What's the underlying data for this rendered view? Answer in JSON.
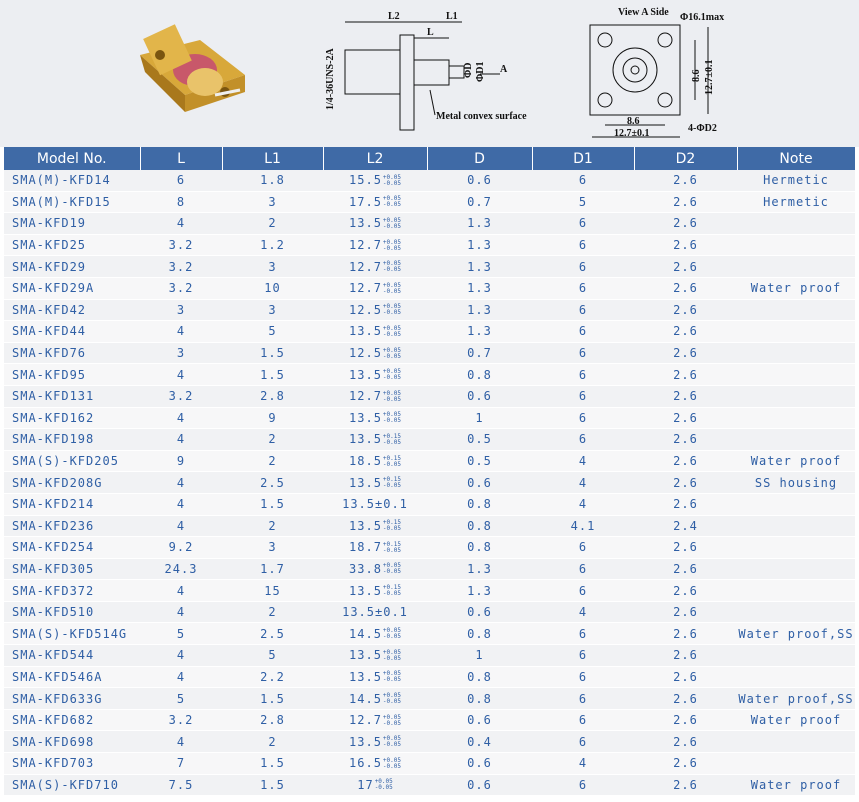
{
  "diagram": {
    "side": {
      "L2": "L2",
      "L1": "L1",
      "L": "L",
      "thread": "1/4-36UNS-2A",
      "phiD": "ΦD",
      "phiD1": "ΦD1",
      "A": "A",
      "surface": "Metal convex surface"
    },
    "front": {
      "view": "View A Side",
      "max": "Φ16.1max",
      "dims": [
        "8.6",
        "12.7±0.1",
        "8.6",
        "12.7±0.1"
      ],
      "holes": "4-ΦD2"
    }
  },
  "table": {
    "headers": [
      "Model No.",
      "L",
      "L1",
      "L2",
      "D",
      "D1",
      "D2",
      "Note"
    ],
    "rows": [
      [
        "SMA(M)-KFD14",
        "6",
        "1.8",
        {
          "base": "15.5",
          "upper": "+0.05",
          "lower": "-0.05"
        },
        "0.6",
        "6",
        "2.6",
        "Hermetic"
      ],
      [
        "SMA(M)-KFD15",
        "8",
        "3",
        {
          "base": "17.5",
          "upper": "+0.05",
          "lower": "-0.05"
        },
        "0.7",
        "5",
        "2.6",
        "Hermetic"
      ],
      [
        "SMA-KFD19",
        "4",
        "2",
        {
          "base": "13.5",
          "upper": "+0.05",
          "lower": "-0.05"
        },
        "1.3",
        "6",
        "2.6"
      ],
      [
        "SMA-KFD25",
        "3.2",
        "1.2",
        {
          "base": "12.7",
          "upper": "+0.05",
          "lower": "-0.05"
        },
        "1.3",
        "6",
        "2.6"
      ],
      [
        "SMA-KFD29",
        "3.2",
        "3",
        {
          "base": "12.7",
          "upper": "+0.05",
          "lower": "-0.05"
        },
        "1.3",
        "6",
        "2.6"
      ],
      [
        "SMA-KFD29A",
        "3.2",
        "10",
        {
          "base": "12.7",
          "upper": "+0.05",
          "lower": "-0.05"
        },
        "1.3",
        "6",
        "2.6",
        "Water proof"
      ],
      [
        "SMA-KFD42",
        "3",
        "3",
        {
          "base": "12.5",
          "upper": "+0.05",
          "lower": "-0.05"
        },
        "1.3",
        "6",
        "2.6"
      ],
      [
        "SMA-KFD44",
        "4",
        "5",
        {
          "base": "13.5",
          "upper": "+0.05",
          "lower": "-0.05"
        },
        "1.3",
        "6",
        "2.6"
      ],
      [
        "SMA-KFD76",
        "3",
        "1.5",
        {
          "base": "12.5",
          "upper": "+0.05",
          "lower": "-0.05"
        },
        "0.7",
        "6",
        "2.6"
      ],
      [
        "SMA-KFD95",
        "4",
        "1.5",
        {
          "base": "13.5",
          "upper": "+0.05",
          "lower": "-0.05"
        },
        "0.8",
        "6",
        "2.6"
      ],
      [
        "SMA-KFD131",
        "3.2",
        "2.8",
        {
          "base": "12.7",
          "upper": "+0.05",
          "lower": "-0.05"
        },
        "0.6",
        "6",
        "2.6"
      ],
      [
        "SMA-KFD162",
        "4",
        "9",
        {
          "base": "13.5",
          "upper": "+0.05",
          "lower": "-0.05"
        },
        "1",
        "6",
        "2.6"
      ],
      [
        "SMA-KFD198",
        "4",
        "2",
        {
          "base": "13.5",
          "upper": "+0.15",
          "lower": "-0.05"
        },
        "0.5",
        "6",
        "2.6"
      ],
      [
        "SMA(S)-KFD205",
        "9",
        "2",
        {
          "base": "18.5",
          "upper": "+0.15",
          "lower": "-0.05"
        },
        "0.5",
        "4",
        "2.6",
        "Water proof"
      ],
      [
        "SMA-KFD208G",
        "4",
        "2.5",
        {
          "base": "13.5",
          "upper": "+0.15",
          "lower": "-0.05"
        },
        "0.6",
        "4",
        "2.6",
        "SS housing"
      ],
      [
        "SMA-KFD214",
        "4",
        "1.5",
        "13.5±0.1",
        "0.8",
        "4",
        "2.6"
      ],
      [
        "SMA-KFD236",
        "4",
        "2",
        {
          "base": "13.5",
          "upper": "+0.15",
          "lower": "-0.05"
        },
        "0.8",
        "4.1",
        "2.4"
      ],
      [
        "SMA-KFD254",
        "9.2",
        "3",
        {
          "base": "18.7",
          "upper": "+0.15",
          "lower": "-0.05"
        },
        "0.8",
        "6",
        "2.6"
      ],
      [
        "SMA-KFD305",
        "24.3",
        "1.7",
        {
          "base": "33.8",
          "upper": "+0.05",
          "lower": "-0.05"
        },
        "1.3",
        "6",
        "2.6"
      ],
      [
        "SMA-KFD372",
        "4",
        "15",
        {
          "base": "13.5",
          "upper": "+0.15",
          "lower": "-0.05"
        },
        "1.3",
        "6",
        "2.6"
      ],
      [
        "SMA-KFD510",
        "4",
        "2",
        "13.5±0.1",
        "0.6",
        "4",
        "2.6"
      ],
      [
        "SMA(S)-KFD514G",
        "5",
        "2.5",
        {
          "base": "14.5",
          "upper": "+0.05",
          "lower": "-0.05"
        },
        "0.8",
        "6",
        "2.6",
        "Water proof,SS"
      ],
      [
        "SMA-KFD544",
        "4",
        "5",
        {
          "base": "13.5",
          "upper": "+0.05",
          "lower": "-0.05"
        },
        "1",
        "6",
        "2.6"
      ],
      [
        "SMA-KFD546A",
        "4",
        "2.2",
        {
          "base": "13.5",
          "upper": "+0.05",
          "lower": "-0.05"
        },
        "0.8",
        "6",
        "2.6"
      ],
      [
        "SMA-KFD633G",
        "5",
        "1.5",
        {
          "base": "14.5",
          "upper": "+0.05",
          "lower": "-0.05"
        },
        "0.8",
        "6",
        "2.6",
        "Water proof,SS"
      ],
      [
        "SMA-KFD682",
        "3.2",
        "2.8",
        {
          "base": "12.7",
          "upper": "+0.05",
          "lower": "-0.05"
        },
        "0.6",
        "6",
        "2.6",
        "Water proof"
      ],
      [
        "SMA-KFD698",
        "4",
        "2",
        {
          "base": "13.5",
          "upper": "+0.05",
          "lower": "-0.05"
        },
        "0.4",
        "6",
        "2.6"
      ],
      [
        "SMA-KFD703",
        "7",
        "1.5",
        {
          "base": "16.5",
          "upper": "+0.05",
          "lower": "-0.05"
        },
        "0.6",
        "4",
        "2.6"
      ],
      [
        "SMA(S)-KFD710",
        "7.5",
        "1.5",
        {
          "base": "17",
          "upper": "+0.05",
          "lower": "-0.05"
        },
        "0.6",
        "6",
        "2.6",
        "Water proof"
      ]
    ]
  }
}
